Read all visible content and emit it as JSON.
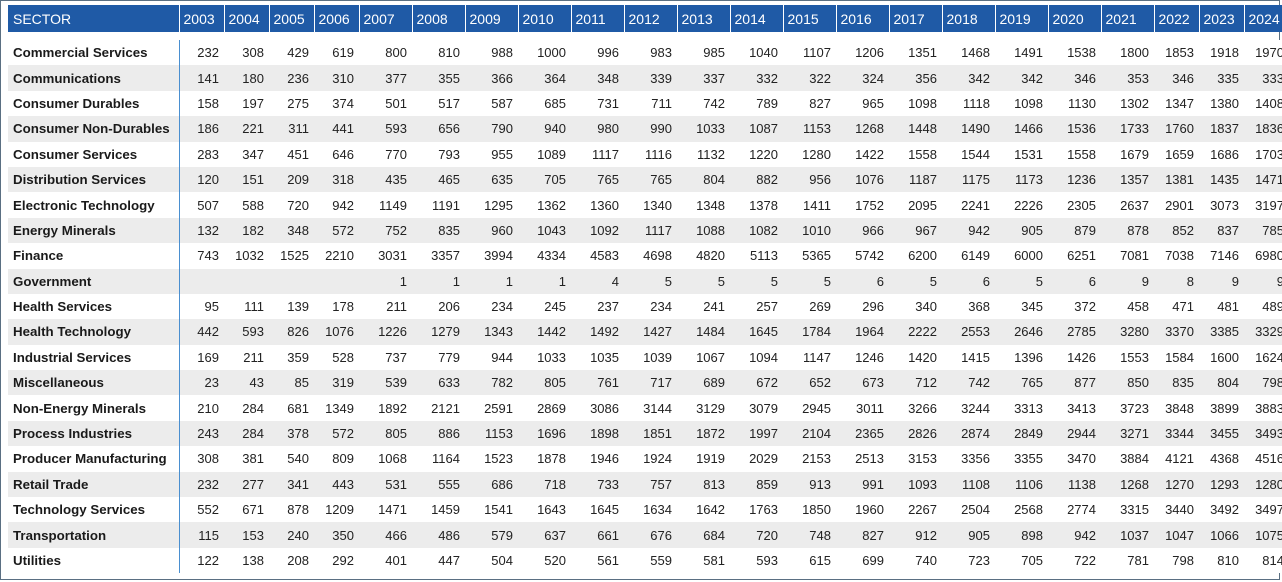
{
  "table": {
    "sector_header": "SECTOR",
    "years": [
      "2003",
      "2004",
      "2005",
      "2006",
      "2007",
      "2008",
      "2009",
      "2010",
      "2011",
      "2012",
      "2013",
      "2014",
      "2015",
      "2016",
      "2017",
      "2018",
      "2019",
      "2020",
      "2021",
      "2022",
      "2023",
      "2024"
    ],
    "rows": [
      {
        "sector": "Commercial Services",
        "values": [
          "232",
          "308",
          "429",
          "619",
          "800",
          "810",
          "988",
          "1000",
          "996",
          "983",
          "985",
          "1040",
          "1107",
          "1206",
          "1351",
          "1468",
          "1491",
          "1538",
          "1800",
          "1853",
          "1918",
          "1970"
        ]
      },
      {
        "sector": "Communications",
        "values": [
          "141",
          "180",
          "236",
          "310",
          "377",
          "355",
          "366",
          "364",
          "348",
          "339",
          "337",
          "332",
          "322",
          "324",
          "356",
          "342",
          "342",
          "346",
          "353",
          "346",
          "335",
          "333"
        ]
      },
      {
        "sector": "Consumer Durables",
        "values": [
          "158",
          "197",
          "275",
          "374",
          "501",
          "517",
          "587",
          "685",
          "731",
          "711",
          "742",
          "789",
          "827",
          "965",
          "1098",
          "1118",
          "1098",
          "1130",
          "1302",
          "1347",
          "1380",
          "1408"
        ]
      },
      {
        "sector": "Consumer Non-Durables",
        "values": [
          "186",
          "221",
          "311",
          "441",
          "593",
          "656",
          "790",
          "940",
          "980",
          "990",
          "1033",
          "1087",
          "1153",
          "1268",
          "1448",
          "1490",
          "1466",
          "1536",
          "1733",
          "1760",
          "1837",
          "1836"
        ]
      },
      {
        "sector": "Consumer Services",
        "values": [
          "283",
          "347",
          "451",
          "646",
          "770",
          "793",
          "955",
          "1089",
          "1117",
          "1116",
          "1132",
          "1220",
          "1280",
          "1422",
          "1558",
          "1544",
          "1531",
          "1558",
          "1679",
          "1659",
          "1686",
          "1703"
        ]
      },
      {
        "sector": "Distribution Services",
        "values": [
          "120",
          "151",
          "209",
          "318",
          "435",
          "465",
          "635",
          "705",
          "765",
          "765",
          "804",
          "882",
          "956",
          "1076",
          "1187",
          "1175",
          "1173",
          "1236",
          "1357",
          "1381",
          "1435",
          "1471"
        ]
      },
      {
        "sector": "Electronic Technology",
        "values": [
          "507",
          "588",
          "720",
          "942",
          "1149",
          "1191",
          "1295",
          "1362",
          "1360",
          "1340",
          "1348",
          "1378",
          "1411",
          "1752",
          "2095",
          "2241",
          "2226",
          "2305",
          "2637",
          "2901",
          "3073",
          "3197"
        ]
      },
      {
        "sector": "Energy Minerals",
        "values": [
          "132",
          "182",
          "348",
          "572",
          "752",
          "835",
          "960",
          "1043",
          "1092",
          "1117",
          "1088",
          "1082",
          "1010",
          "966",
          "967",
          "942",
          "905",
          "879",
          "878",
          "852",
          "837",
          "785"
        ]
      },
      {
        "sector": "Finance",
        "values": [
          "743",
          "1032",
          "1525",
          "2210",
          "3031",
          "3357",
          "3994",
          "4334",
          "4583",
          "4698",
          "4820",
          "5113",
          "5365",
          "5742",
          "6200",
          "6149",
          "6000",
          "6251",
          "7081",
          "7038",
          "7146",
          "6980"
        ]
      },
      {
        "sector": "Government",
        "values": [
          "",
          "",
          "",
          "",
          "1",
          "1",
          "1",
          "1",
          "4",
          "5",
          "5",
          "5",
          "5",
          "6",
          "5",
          "6",
          "5",
          "6",
          "9",
          "8",
          "9",
          "9"
        ]
      },
      {
        "sector": "Health Services",
        "values": [
          "95",
          "111",
          "139",
          "178",
          "211",
          "206",
          "234",
          "245",
          "237",
          "234",
          "241",
          "257",
          "269",
          "296",
          "340",
          "368",
          "345",
          "372",
          "458",
          "471",
          "481",
          "489"
        ]
      },
      {
        "sector": "Health Technology",
        "values": [
          "442",
          "593",
          "826",
          "1076",
          "1226",
          "1279",
          "1343",
          "1442",
          "1492",
          "1427",
          "1484",
          "1645",
          "1784",
          "1964",
          "2222",
          "2553",
          "2646",
          "2785",
          "3280",
          "3370",
          "3385",
          "3329"
        ]
      },
      {
        "sector": "Industrial Services",
        "values": [
          "169",
          "211",
          "359",
          "528",
          "737",
          "779",
          "944",
          "1033",
          "1035",
          "1039",
          "1067",
          "1094",
          "1147",
          "1246",
          "1420",
          "1415",
          "1396",
          "1426",
          "1553",
          "1584",
          "1600",
          "1624"
        ]
      },
      {
        "sector": "Miscellaneous",
        "values": [
          "23",
          "43",
          "85",
          "319",
          "539",
          "633",
          "782",
          "805",
          "761",
          "717",
          "689",
          "672",
          "652",
          "673",
          "712",
          "742",
          "765",
          "877",
          "850",
          "835",
          "804",
          "798"
        ]
      },
      {
        "sector": "Non-Energy Minerals",
        "values": [
          "210",
          "284",
          "681",
          "1349",
          "1892",
          "2121",
          "2591",
          "2869",
          "3086",
          "3144",
          "3129",
          "3079",
          "2945",
          "3011",
          "3266",
          "3244",
          "3313",
          "3413",
          "3723",
          "3848",
          "3899",
          "3883"
        ]
      },
      {
        "sector": "Process Industries",
        "values": [
          "243",
          "284",
          "378",
          "572",
          "805",
          "886",
          "1153",
          "1696",
          "1898",
          "1851",
          "1872",
          "1997",
          "2104",
          "2365",
          "2826",
          "2874",
          "2849",
          "2944",
          "3271",
          "3344",
          "3455",
          "3493"
        ]
      },
      {
        "sector": "Producer Manufacturing",
        "values": [
          "308",
          "381",
          "540",
          "809",
          "1068",
          "1164",
          "1523",
          "1878",
          "1946",
          "1924",
          "1919",
          "2029",
          "2153",
          "2513",
          "3153",
          "3356",
          "3355",
          "3470",
          "3884",
          "4121",
          "4368",
          "4516"
        ]
      },
      {
        "sector": "Retail Trade",
        "values": [
          "232",
          "277",
          "341",
          "443",
          "531",
          "555",
          "686",
          "718",
          "733",
          "757",
          "813",
          "859",
          "913",
          "991",
          "1093",
          "1108",
          "1106",
          "1138",
          "1268",
          "1270",
          "1293",
          "1280"
        ]
      },
      {
        "sector": "Technology Services",
        "values": [
          "552",
          "671",
          "878",
          "1209",
          "1471",
          "1459",
          "1541",
          "1643",
          "1645",
          "1634",
          "1642",
          "1763",
          "1850",
          "1960",
          "2267",
          "2504",
          "2568",
          "2774",
          "3315",
          "3440",
          "3492",
          "3497"
        ]
      },
      {
        "sector": "Transportation",
        "values": [
          "115",
          "153",
          "240",
          "350",
          "466",
          "486",
          "579",
          "637",
          "661",
          "676",
          "684",
          "720",
          "748",
          "827",
          "912",
          "905",
          "898",
          "942",
          "1037",
          "1047",
          "1066",
          "1075"
        ]
      },
      {
        "sector": "Utilities",
        "values": [
          "122",
          "138",
          "208",
          "292",
          "401",
          "447",
          "504",
          "520",
          "561",
          "559",
          "581",
          "593",
          "615",
          "699",
          "740",
          "723",
          "705",
          "722",
          "781",
          "798",
          "810",
          "814"
        ]
      }
    ]
  }
}
